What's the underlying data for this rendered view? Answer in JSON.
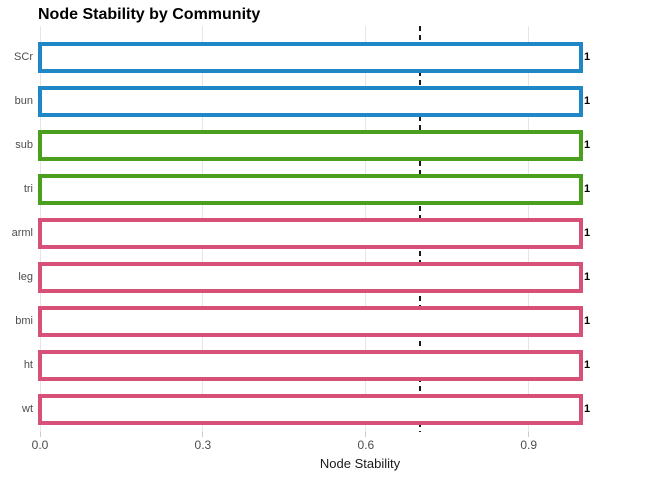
{
  "title": "Node Stability by Community",
  "chart_data": {
    "type": "bar",
    "orientation": "horizontal",
    "title": "Node Stability by Community",
    "xlabel": "Node Stability",
    "ylabel": "",
    "xlim": [
      0,
      1.05
    ],
    "xticks": [
      0.0,
      0.3,
      0.6,
      0.9
    ],
    "xtick_labels": [
      "0.0",
      "0.3",
      "0.6",
      "0.9"
    ],
    "categories": [
      "SCr",
      "bun",
      "sub",
      "tri",
      "arml",
      "leg",
      "bmi",
      "ht",
      "wt"
    ],
    "values": [
      1,
      1,
      1,
      1,
      1,
      1,
      1,
      1,
      1
    ],
    "value_labels": [
      "1",
      "1",
      "1",
      "1",
      "1",
      "1",
      "1",
      "1",
      "1"
    ],
    "groups": [
      "community-1",
      "community-1",
      "community-2",
      "community-2",
      "community-3",
      "community-3",
      "community-3",
      "community-3",
      "community-3"
    ],
    "group_colors": {
      "community-1": "#1f87c6",
      "community-2": "#4aa01e",
      "community-3": "#d65077"
    },
    "bar_fill": "#ffffff",
    "reference_line": {
      "value": 0.7,
      "style": "dashed",
      "color": "#1a1a1a"
    },
    "grid": "major-x",
    "gridline_color": "#e6e6e6",
    "legend": "none"
  }
}
